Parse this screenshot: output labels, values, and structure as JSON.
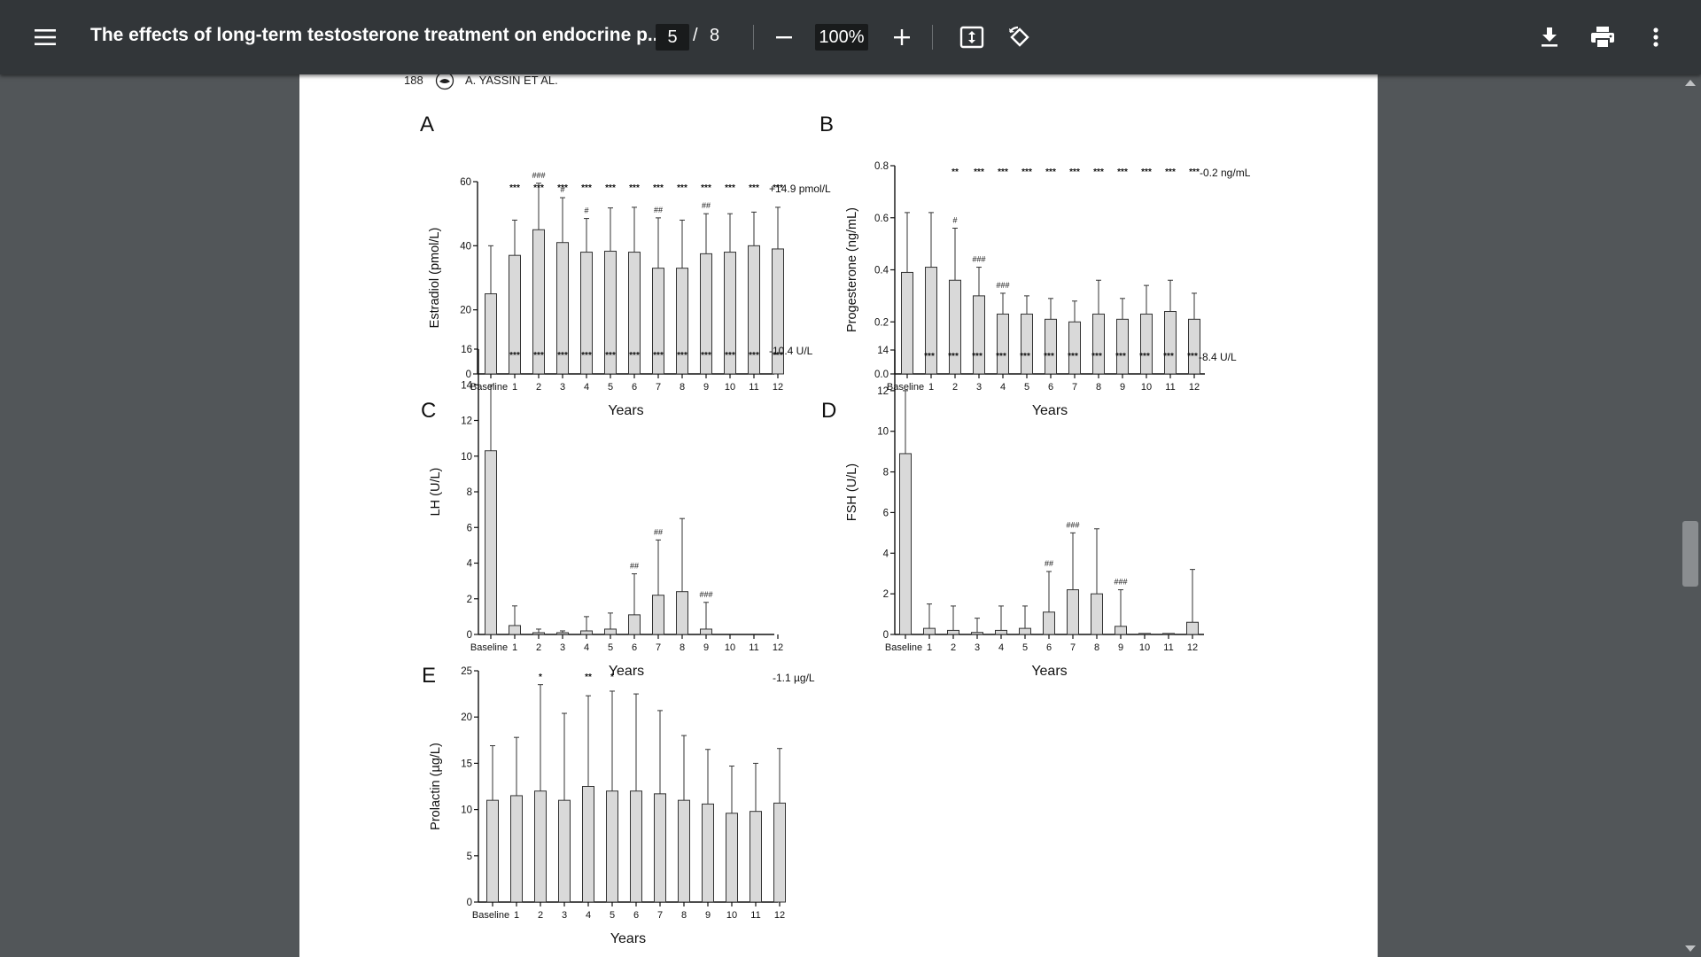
{
  "toolbar": {
    "menu_icon": "hamburger-menu-icon",
    "title": "The effects of long-term testosterone treatment on endocrine p...",
    "current_page": "5",
    "page_separator": "/",
    "total_pages": "8",
    "zoom": "100%",
    "icons": [
      "zoom-out-icon",
      "zoom-in-icon",
      "fit-page-icon",
      "rotate-icon",
      "download-icon",
      "print-icon",
      "more-options-icon"
    ]
  },
  "page_header": {
    "page_number": "188",
    "authors": "A. YASSIN ET AL."
  },
  "chart_data": [
    {
      "panel": "A",
      "type": "bar",
      "categories": [
        "Baseline",
        "1",
        "2",
        "3",
        "4",
        "5",
        "6",
        "7",
        "8",
        "9",
        "10",
        "11",
        "12"
      ],
      "values": [
        25,
        37,
        45,
        41,
        38,
        38.3,
        38,
        33,
        33,
        37.5,
        38,
        40,
        39
      ],
      "errors": [
        15,
        11,
        14.5,
        14,
        10.5,
        13.5,
        14,
        15.7,
        15,
        12.5,
        12,
        10.5,
        13
      ],
      "sig": [
        "",
        "***",
        "***",
        "***",
        "***",
        "***",
        "***",
        "***",
        "***",
        "***",
        "***",
        "***",
        "***"
      ],
      "sig2": [
        "",
        "",
        "###",
        "#",
        "#",
        "",
        "",
        "##",
        "",
        "##",
        "",
        "",
        ""
      ],
      "annotation": "+14.9 pmol/L",
      "xlabel": "Years",
      "ylabel": "Estradiol (pmol/L)",
      "ylim": [
        0,
        60
      ],
      "yticks": [
        "0",
        "20",
        "40",
        "60"
      ]
    },
    {
      "panel": "B",
      "type": "bar",
      "categories": [
        "Baseline",
        "1",
        "2",
        "3",
        "4",
        "5",
        "6",
        "7",
        "8",
        "9",
        "10",
        "11",
        "12"
      ],
      "values": [
        0.39,
        0.41,
        0.36,
        0.3,
        0.23,
        0.23,
        0.21,
        0.2,
        0.23,
        0.21,
        0.23,
        0.24,
        0.21
      ],
      "errors": [
        0.23,
        0.21,
        0.2,
        0.11,
        0.08,
        0.07,
        0.08,
        0.08,
        0.13,
        0.08,
        0.11,
        0.12,
        0.1
      ],
      "sig": [
        "",
        "",
        "**",
        "***",
        "***",
        "***",
        "***",
        "***",
        "***",
        "***",
        "***",
        "***",
        "***"
      ],
      "sig2": [
        "",
        "",
        "#",
        "###",
        "###",
        "",
        "",
        "",
        "",
        "",
        "",
        "",
        ""
      ],
      "annotation": "-0.2 ng/mL",
      "xlabel": "Years",
      "ylabel": "Progesterone (ng/mL)",
      "ylim": [
        0,
        0.8
      ],
      "yticks": [
        "0.0",
        "0.2",
        "0.4",
        "0.6",
        "0.8"
      ]
    },
    {
      "panel": "C",
      "type": "bar",
      "categories": [
        "Baseline",
        "1",
        "2",
        "3",
        "4",
        "5",
        "6",
        "7",
        "8",
        "9",
        "10",
        "11",
        "12"
      ],
      "values": [
        10.3,
        0.5,
        0.1,
        0.1,
        0.2,
        0.3,
        1.1,
        2.2,
        2.4,
        0.3,
        0,
        0,
        0
      ],
      "errors": [
        3.7,
        1.1,
        0.2,
        0.1,
        0.8,
        0.9,
        2.3,
        3.1,
        4.1,
        1.5,
        0,
        0,
        0
      ],
      "sig": [
        "",
        "***",
        "***",
        "***",
        "***",
        "***",
        "***",
        "***",
        "***",
        "***",
        "***",
        "***",
        "***"
      ],
      "sig2": [
        "",
        "",
        "",
        "",
        "",
        "",
        "##",
        "##",
        "",
        "###",
        "",
        "",
        ""
      ],
      "annotation": "-10.4 U/L",
      "xlabel": "Years",
      "ylabel": "LH (U/L)",
      "ylim": [
        0,
        16
      ],
      "yticks": [
        "0",
        "2",
        "4",
        "6",
        "8",
        "10",
        "12",
        "14",
        "16"
      ]
    },
    {
      "panel": "D",
      "type": "bar",
      "categories": [
        "Baseline",
        "1",
        "2",
        "3",
        "4",
        "5",
        "6",
        "7",
        "8",
        "9",
        "10",
        "11",
        "12"
      ],
      "values": [
        8.9,
        0.3,
        0.2,
        0.1,
        0.2,
        0.3,
        1.1,
        2.2,
        2.0,
        0.4,
        0.05,
        0.05,
        0.6
      ],
      "errors": [
        3.1,
        1.2,
        1.2,
        0.7,
        1.2,
        1.1,
        2.0,
        2.8,
        3.2,
        1.8,
        0,
        0,
        2.6
      ],
      "sig": [
        "",
        "***",
        "***",
        "***",
        "***",
        "***",
        "***",
        "***",
        "***",
        "***",
        "***",
        "***",
        "***"
      ],
      "sig2": [
        "",
        "",
        "",
        "",
        "",
        "",
        "##",
        "###",
        "",
        "###",
        "",
        "",
        ""
      ],
      "annotation": "-8.4 U/L",
      "xlabel": "Years",
      "ylabel": "FSH (U/L)",
      "ylim": [
        0,
        14
      ],
      "yticks": [
        "0",
        "2",
        "4",
        "6",
        "8",
        "10",
        "12",
        "14"
      ]
    },
    {
      "panel": "E",
      "type": "bar",
      "categories": [
        "Baseline",
        "1",
        "2",
        "3",
        "4",
        "5",
        "6",
        "7",
        "8",
        "9",
        "10",
        "11",
        "12"
      ],
      "values": [
        11,
        11.5,
        12,
        11,
        12.5,
        12,
        12,
        11.7,
        11,
        10.6,
        9.6,
        9.8,
        10.7
      ],
      "errors": [
        5.9,
        6.3,
        11.5,
        9.4,
        9.8,
        10.8,
        10.5,
        9,
        7,
        5.9,
        5.1,
        5.2,
        5.9
      ],
      "sig": [
        "",
        "",
        "*",
        "",
        "**",
        "*",
        "",
        "",
        "",
        "",
        "",
        "",
        ""
      ],
      "sig2": [
        "",
        "",
        "",
        "",
        "",
        "",
        "",
        "",
        "",
        "",
        "",
        "",
        ""
      ],
      "annotation": "-1.1 µg/L",
      "xlabel": "Years",
      "ylabel": "Prolactin (µg/L)",
      "ylim": [
        0,
        25
      ],
      "yticks": [
        "0",
        "5",
        "10",
        "15",
        "20",
        "25"
      ]
    }
  ],
  "colors": {
    "toolbar_bg": "#323639",
    "viewer_bg": "#525659",
    "bar_fill": "#d9d9d9",
    "page_bg": "#ffffff"
  }
}
